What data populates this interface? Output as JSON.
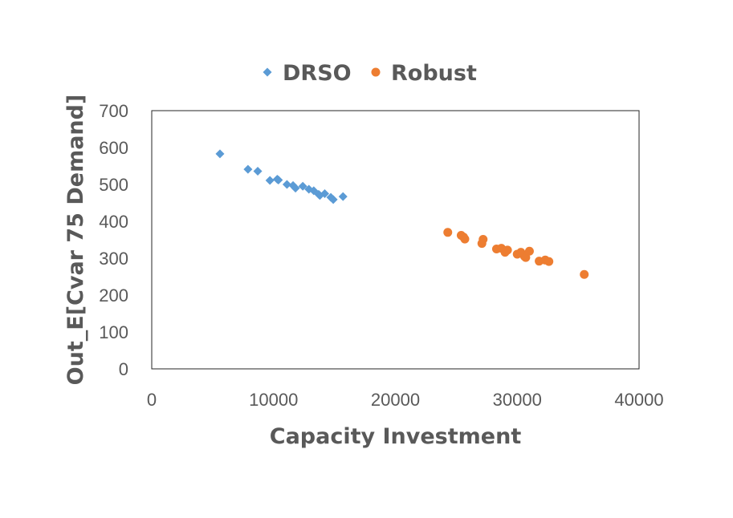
{
  "chart_data": {
    "type": "scatter",
    "title": "",
    "xlabel": "Capacity Investment",
    "ylabel": "Out_E[Cvar 75 Demand]",
    "xlim": [
      0,
      40000
    ],
    "ylim": [
      0,
      700
    ],
    "xticks": [
      0,
      10000,
      20000,
      30000,
      40000
    ],
    "yticks": [
      0,
      100,
      200,
      300,
      400,
      500,
      600,
      700
    ],
    "grid": false,
    "legend_position": "top",
    "series": [
      {
        "name": "DRSO",
        "marker": "diamond",
        "color": "#5B9BD5",
        "points": [
          [
            5600,
            583
          ],
          [
            7900,
            541
          ],
          [
            8700,
            536
          ],
          [
            9700,
            511
          ],
          [
            10300,
            514
          ],
          [
            10400,
            512
          ],
          [
            11100,
            500
          ],
          [
            11600,
            497
          ],
          [
            11800,
            490
          ],
          [
            12400,
            495
          ],
          [
            12900,
            487
          ],
          [
            13300,
            483
          ],
          [
            13700,
            473
          ],
          [
            13800,
            470
          ],
          [
            14200,
            475
          ],
          [
            14700,
            465
          ],
          [
            14900,
            459
          ],
          [
            15700,
            467
          ]
        ]
      },
      {
        "name": "Robust",
        "marker": "circle",
        "color": "#ED7D31",
        "points": [
          [
            24300,
            370
          ],
          [
            25400,
            362
          ],
          [
            25600,
            357
          ],
          [
            25700,
            352
          ],
          [
            27100,
            340
          ],
          [
            27200,
            351
          ],
          [
            28300,
            325
          ],
          [
            28700,
            327
          ],
          [
            29000,
            316
          ],
          [
            29200,
            322
          ],
          [
            30000,
            311
          ],
          [
            30300,
            316
          ],
          [
            30600,
            305
          ],
          [
            30700,
            302
          ],
          [
            31000,
            319
          ],
          [
            31800,
            292
          ],
          [
            32300,
            295
          ],
          [
            32600,
            291
          ],
          [
            35500,
            256
          ]
        ]
      }
    ]
  }
}
